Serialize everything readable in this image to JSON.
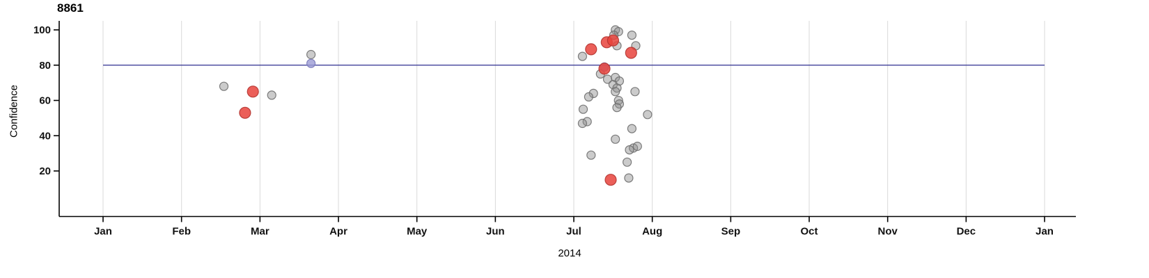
{
  "chart_data": {
    "type": "scatter",
    "title": "8861",
    "ylabel": "Confidence",
    "xlabel": "2014",
    "x_tick_labels": [
      "Jan",
      "Feb",
      "Mar",
      "Apr",
      "May",
      "Jun",
      "Jul",
      "Aug",
      "Sep",
      "Oct",
      "Nov",
      "Dec",
      "Jan"
    ],
    "y_ticks": [
      20,
      40,
      60,
      80,
      100
    ],
    "ylim": [
      0,
      105
    ],
    "grid": "vertical-only",
    "legend_position": "none",
    "threshold_line_y": 80,
    "colors": {
      "grid": "#d9d9d9",
      "axis": "#000000",
      "threshold_line": "#2d2d8f",
      "gray_fill": "#8c8c8c",
      "gray_stroke": "#6e6e6e",
      "red_fill": "#e8433c",
      "red_stroke": "#b23430",
      "purple_fill": "#9b9bd4",
      "purple_stroke": "#7878b8"
    },
    "series": [
      {
        "name": "gray-points",
        "radius": 6,
        "fill_opacity": 0.45,
        "points_month_value": [
          [
            1.54,
            68
          ],
          [
            2.15,
            63
          ],
          [
            2.65,
            86
          ],
          [
            6.11,
            85
          ],
          [
            6.53,
            100
          ],
          [
            6.57,
            99
          ],
          [
            6.51,
            97
          ],
          [
            6.74,
            97
          ],
          [
            6.79,
            91
          ],
          [
            6.55,
            91
          ],
          [
            6.34,
            75
          ],
          [
            6.25,
            64
          ],
          [
            6.19,
            62
          ],
          [
            6.43,
            72
          ],
          [
            6.53,
            73
          ],
          [
            6.58,
            71
          ],
          [
            6.5,
            69
          ],
          [
            6.55,
            67
          ],
          [
            6.53,
            65
          ],
          [
            6.78,
            65
          ],
          [
            6.57,
            60
          ],
          [
            6.58,
            58
          ],
          [
            6.55,
            56
          ],
          [
            6.12,
            55
          ],
          [
            6.94,
            52
          ],
          [
            6.17,
            48
          ],
          [
            6.11,
            47
          ],
          [
            6.74,
            44
          ],
          [
            6.53,
            38
          ],
          [
            6.76,
            33
          ],
          [
            6.71,
            32
          ],
          [
            6.81,
            34
          ],
          [
            6.22,
            29
          ],
          [
            6.68,
            25
          ],
          [
            6.7,
            16
          ]
        ]
      },
      {
        "name": "purple-points",
        "radius": 6,
        "fill_opacity": 0.8,
        "points_month_value": [
          [
            2.65,
            81
          ],
          [
            6.39,
            79
          ]
        ]
      },
      {
        "name": "red-points",
        "radius": 8,
        "fill_opacity": 0.85,
        "points_month_value": [
          [
            1.91,
            65
          ],
          [
            1.81,
            53
          ],
          [
            6.22,
            89
          ],
          [
            6.42,
            93
          ],
          [
            6.5,
            94
          ],
          [
            6.39,
            78
          ],
          [
            6.73,
            87
          ],
          [
            6.47,
            15
          ]
        ]
      }
    ]
  }
}
